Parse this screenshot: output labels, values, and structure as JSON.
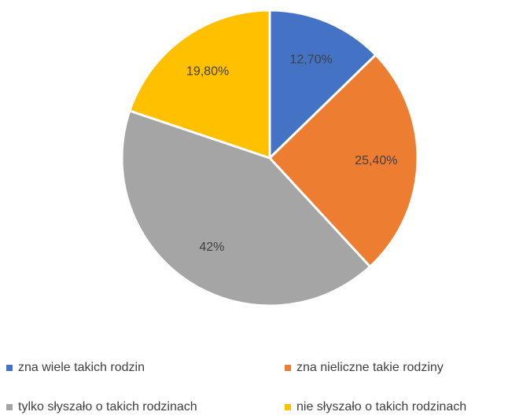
{
  "chart_data": {
    "type": "pie",
    "categories": [
      "zna wiele takich rodzin",
      "zna nieliczne takie rodziny",
      "tylko słyszało o takich rodzinach",
      "nie słyszało o takich rodzinach"
    ],
    "values": [
      12.7,
      25.4,
      42,
      19.8
    ],
    "value_labels": [
      "12,70%",
      "25,40%",
      "42%",
      "19,80%"
    ],
    "colors": [
      "#4472c4",
      "#ed7d31",
      "#a5a5a5",
      "#ffc000"
    ]
  }
}
